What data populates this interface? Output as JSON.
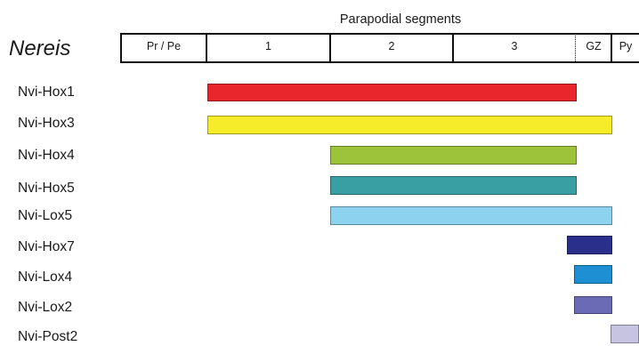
{
  "header": {
    "title": "Parapodial segments",
    "organism": "Nereis"
  },
  "segments": [
    {
      "label": "Pr / Pe"
    },
    {
      "label": "1"
    },
    {
      "label": "2"
    },
    {
      "label": "3"
    },
    {
      "label": "GZ"
    },
    {
      "label": "Py"
    }
  ],
  "genes": [
    {
      "name": "Nvi-Hox1",
      "color": "#e8262b"
    },
    {
      "name": "Nvi-Hox3",
      "color": "#f6ec2a"
    },
    {
      "name": "Nvi-Hox4",
      "color": "#9dc33b"
    },
    {
      "name": "Nvi-Hox5",
      "color": "#3a9fa2"
    },
    {
      "name": "Nvi-Lox5",
      "color": "#8dd3ef"
    },
    {
      "name": "Nvi-Hox7",
      "color": "#2b2f8c"
    },
    {
      "name": "Nvi-Lox4",
      "color": "#1d8fd2"
    },
    {
      "name": "Nvi-Lox2",
      "color": "#6b6bb5"
    },
    {
      "name": "Nvi-Post2",
      "color": "#c7c4e2"
    }
  ]
}
